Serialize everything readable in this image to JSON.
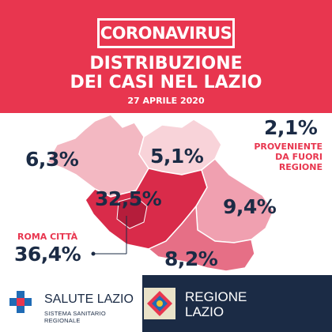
{
  "header": {
    "badge": "CORONAVIRUS",
    "title_line1": "DISTRIBUZIONE",
    "title_line2": "DEI CASI NEL LAZIO",
    "date": "27 APRILE 2020"
  },
  "map": {
    "province_north_west": "6,3%",
    "province_north_east": "5,1%",
    "province_roma": "32,5%",
    "province_south_east": "9,4%",
    "province_south": "8,2%",
    "roma_citta_label": "ROMA CITTÀ",
    "roma_citta_value": "36,4%",
    "outside_value": "2,1%",
    "outside_label_line1": "PROVENIENTE",
    "outside_label_line2": "DA FUORI",
    "outside_label_line3": "REGIONE"
  },
  "footer": {
    "salute_title": "SALUTE LAZIO",
    "salute_subtitle": "SISTEMA SANITARIO REGIONALE",
    "regione_line1": "REGIONE",
    "regione_line2": "LAZIO"
  },
  "colors": {
    "accent_red": "#e8364f",
    "navy": "#1b2b45"
  }
}
